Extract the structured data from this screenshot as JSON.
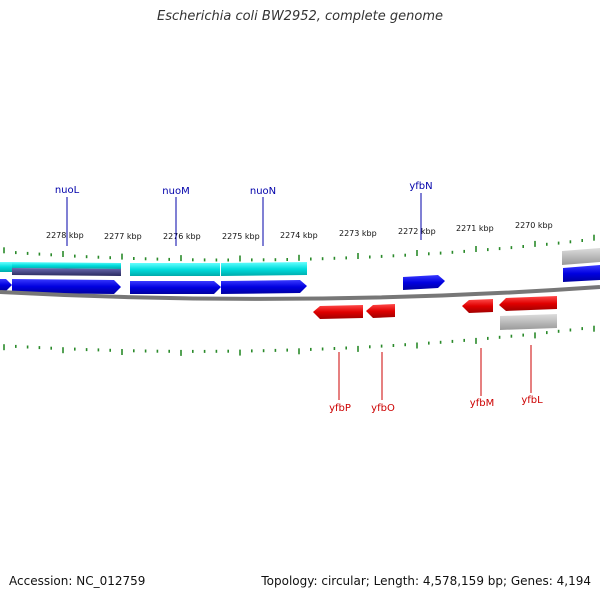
{
  "title": "Escherichia coli BW2952, complete genome",
  "footer": {
    "accession": "Accession: NC_012759",
    "summary": "Topology: circular; Length: 4,578,159 bp; Genes: 4,194"
  },
  "ruler": {
    "labels": [
      "2278 kbp",
      "2277 kbp",
      "2276 kbp",
      "2275 kbp",
      "2274 kbp",
      "2273 kbp",
      "2272 kbp",
      "2271 kbp",
      "2270 kbp"
    ]
  },
  "genes_top": [
    {
      "name": "nuoL",
      "color": "#0000aa"
    },
    {
      "name": "nuoM",
      "color": "#0000aa"
    },
    {
      "name": "nuoN",
      "color": "#0000aa"
    },
    {
      "name": "yfbN",
      "color": "#0000aa"
    }
  ],
  "genes_bottom": [
    {
      "name": "yfbP",
      "color": "#cc0000"
    },
    {
      "name": "yfbO",
      "color": "#cc0000"
    },
    {
      "name": "yfbM",
      "color": "#cc0000"
    },
    {
      "name": "yfbL",
      "color": "#cc0000"
    }
  ],
  "colors": {
    "forward_cds": "#0000e0",
    "reverse_cds": "#e00000",
    "gene_cyan": "#00dddd",
    "gene_dark": "#3a3a80",
    "gray_feature": "#b0b0b0",
    "backbone": "#777777",
    "tick": "#2a8a2a"
  }
}
